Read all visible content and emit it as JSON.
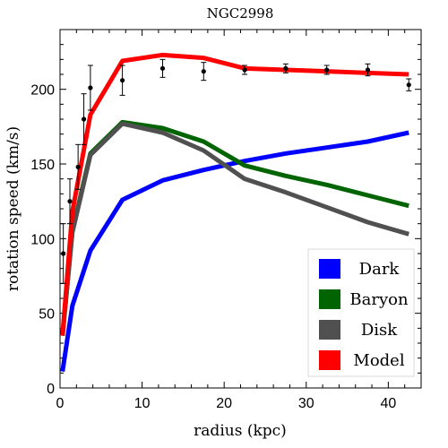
{
  "chart_data": {
    "type": "line",
    "title": "NGC2998",
    "xlabel": "radius (kpc)",
    "ylabel": "rotation speed (km/s)",
    "xlim": [
      0,
      44
    ],
    "ylim": [
      0,
      240
    ],
    "xticks": [
      0,
      10,
      20,
      30,
      40
    ],
    "yticks": [
      0,
      50,
      100,
      150,
      200
    ],
    "legend_position": "bottom-right",
    "series": [
      {
        "name": "Dark",
        "color": "#0000ff",
        "x": [
          0.3,
          1.5,
          3.7,
          7.6,
          12.5,
          17.5,
          22.5,
          27.5,
          32.5,
          37.5,
          42.5
        ],
        "y": [
          11,
          55,
          92,
          126,
          139,
          146,
          152,
          157,
          161,
          165,
          171
        ]
      },
      {
        "name": "Baryon",
        "color": "#006400",
        "x": [
          0.3,
          1.5,
          3.7,
          7.6,
          12.5,
          17.5,
          22.5,
          27.5,
          32.5,
          37.5,
          42.5
        ],
        "y": [
          35,
          105,
          157,
          178,
          174,
          165,
          149,
          142,
          136,
          129,
          122
        ]
      },
      {
        "name": "Disk",
        "color": "#505050",
        "x": [
          0.3,
          1.5,
          3.7,
          7.6,
          12.5,
          17.5,
          22.5,
          27.5,
          32.5,
          37.5,
          42.5
        ],
        "y": [
          35,
          104,
          156,
          177,
          171,
          159,
          140,
          131,
          121,
          111,
          103
        ]
      },
      {
        "name": "Model",
        "color": "#ff0000",
        "x": [
          0.3,
          1.5,
          3.7,
          7.6,
          12.5,
          17.5,
          22.5,
          27.5,
          32.5,
          37.5,
          42.5
        ],
        "y": [
          35,
          118,
          183,
          219,
          223,
          221,
          214,
          213,
          212,
          211,
          210
        ]
      }
    ],
    "observed": {
      "color": "#000000",
      "points": [
        {
          "x": 0.4,
          "y": 90,
          "err": 20
        },
        {
          "x": 1.2,
          "y": 125,
          "err": 15
        },
        {
          "x": 2.2,
          "y": 148,
          "err": 15
        },
        {
          "x": 2.9,
          "y": 180,
          "err": 17
        },
        {
          "x": 3.7,
          "y": 201,
          "err": 15
        },
        {
          "x": 7.6,
          "y": 206,
          "err": 10
        },
        {
          "x": 12.5,
          "y": 214,
          "err": 6
        },
        {
          "x": 17.5,
          "y": 212,
          "err": 6
        },
        {
          "x": 22.5,
          "y": 213,
          "err": 3
        },
        {
          "x": 27.5,
          "y": 214,
          "err": 3
        },
        {
          "x": 32.5,
          "y": 213,
          "err": 3
        },
        {
          "x": 37.5,
          "y": 213,
          "err": 4
        },
        {
          "x": 42.5,
          "y": 203,
          "err": 4
        }
      ]
    }
  }
}
